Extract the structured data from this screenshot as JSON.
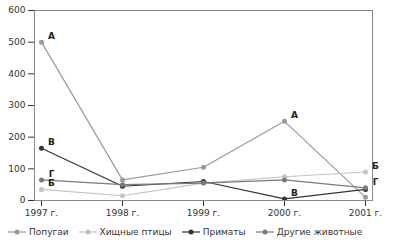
{
  "chart_data": {
    "type": "line",
    "categories": [
      "1997 г.",
      "1998 г.",
      "1999 г.",
      "2000 г.",
      "2001 г."
    ],
    "series": [
      {
        "name": "Попугаи",
        "color": "#9a9a9a",
        "marker": "circle",
        "values": [
          500,
          65,
          105,
          250,
          10
        ]
      },
      {
        "name": "Хищные птицы",
        "color": "#c4c4c4",
        "marker": "circle",
        "values": [
          35,
          15,
          55,
          75,
          90
        ]
      },
      {
        "name": "Приматы",
        "color": "#333333",
        "marker": "circle",
        "values": [
          165,
          45,
          60,
          5,
          35
        ]
      },
      {
        "name": "Другие животные",
        "color": "#7a7a7a",
        "marker": "circle",
        "values": [
          65,
          50,
          55,
          65,
          40
        ]
      }
    ],
    "annotations": [
      {
        "text": "А",
        "x": "1997 г.",
        "y": 500
      },
      {
        "text": "В",
        "x": "1997 г.",
        "y": 165
      },
      {
        "text": "Г",
        "x": "1997 г.",
        "y": 65
      },
      {
        "text": "Б",
        "x": "1997 г.",
        "y": 35
      },
      {
        "text": "А",
        "x": "2000 г.",
        "y": 250
      },
      {
        "text": "В",
        "x": "2000 г.",
        "y": 5
      },
      {
        "text": "Б",
        "x": "2001 г.",
        "y": 90
      },
      {
        "text": "Г",
        "x": "2001 г.",
        "y": 40
      }
    ],
    "ylim": [
      0,
      600
    ],
    "yticks": [
      0,
      100,
      200,
      300,
      400,
      500,
      600
    ],
    "grid": false,
    "legend": "bottom"
  }
}
